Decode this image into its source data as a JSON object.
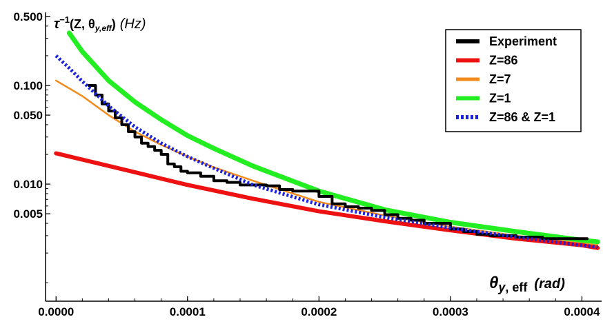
{
  "chart_data": {
    "type": "line",
    "title": "",
    "xlabel": "θy, eff (rad)",
    "ylabel": "τ⁻¹(Z, θy,eff) (Hz)",
    "xlabel_parts": {
      "main": "θ",
      "sub": "y",
      "sub2": ", eff",
      "unit": "(rad)"
    },
    "ylabel_parts": {
      "main": "τ",
      "sup": "−1",
      "open": "(Z, θ",
      "sub": "y,eff",
      "close": ")",
      "unit": "(Hz)"
    },
    "xscale": "linear",
    "yscale": "log",
    "xlim": [
      -8e-06,
      0.000415
    ],
    "ylim": [
      0.00065,
      0.55
    ],
    "x_ticks": [
      0.0,
      0.0001,
      0.0002,
      0.0003,
      0.0004
    ],
    "x_tick_labels": [
      "0.0000",
      "0.0001",
      "0.0002",
      "0.0003",
      "0.0004"
    ],
    "y_ticks": [
      0.5,
      0.1,
      0.05,
      0.01,
      0.005
    ],
    "y_tick_labels": [
      "0.500",
      "0.100",
      "0.050",
      "0.010",
      "0.005"
    ],
    "grid": false,
    "legend_position": "top-right",
    "series": [
      {
        "name": "Experiment",
        "color": "#000000",
        "style": "step",
        "x": [
          2.5e-05,
          3e-05,
          3.5e-05,
          4e-05,
          4.5e-05,
          5e-05,
          5.5e-05,
          6e-05,
          6.5e-05,
          7e-05,
          7.5e-05,
          8e-05,
          8.5e-05,
          9e-05,
          9.5e-05,
          0.0001,
          0.00011,
          0.00012,
          0.00013,
          0.00014,
          0.00015,
          0.00016,
          0.00017,
          0.00018,
          0.00019,
          0.0002,
          0.00021,
          0.00022,
          0.00023,
          0.00024,
          0.00025,
          0.00026,
          0.00027,
          0.00028,
          0.0003,
          0.00031,
          0.00032,
          0.00033,
          0.00035,
          0.00036,
          0.00037,
          0.00038,
          0.00039,
          0.0004
        ],
        "values": [
          0.1,
          0.08,
          0.065,
          0.055,
          0.047,
          0.04,
          0.034,
          0.03,
          0.026,
          0.024,
          0.022,
          0.02,
          0.016,
          0.015,
          0.0135,
          0.013,
          0.012,
          0.0108,
          0.0104,
          0.0098,
          0.0098,
          0.0096,
          0.0088,
          0.0085,
          0.0085,
          0.0075,
          0.0063,
          0.0059,
          0.0057,
          0.0054,
          0.0049,
          0.0045,
          0.0043,
          0.004,
          0.0035,
          0.0033,
          0.0031,
          0.003,
          0.0029,
          0.0029,
          0.0028,
          0.0028,
          0.0028,
          0.0028
        ]
      },
      {
        "name": "Z=86",
        "color": "#ee1111",
        "style": "solid",
        "x": [
          0.0,
          5e-05,
          0.0001,
          0.00015,
          0.0002,
          0.00025,
          0.0003,
          0.00035,
          0.0004,
          0.000412
        ],
        "values": [
          0.0205,
          0.0142,
          0.0098,
          0.0071,
          0.0053,
          0.0042,
          0.0034,
          0.0028,
          0.0024,
          0.00225
        ]
      },
      {
        "name": "Z=7",
        "color": "#f28a1c",
        "style": "solid",
        "x": [
          0.0,
          2e-05,
          4e-05,
          6e-05,
          8e-05,
          0.0001,
          0.00012,
          0.00015,
          0.0002,
          0.00025,
          0.0003,
          0.00035,
          0.0004,
          0.000412
        ],
        "values": [
          0.112,
          0.078,
          0.05,
          0.034,
          0.025,
          0.019,
          0.0148,
          0.0108,
          0.0066,
          0.0048,
          0.0037,
          0.003,
          0.0025,
          0.0024
        ]
      },
      {
        "name": "Z=1",
        "color": "#22ee22",
        "style": "solid",
        "x": [
          1e-05,
          2e-05,
          4e-05,
          6e-05,
          8e-05,
          0.0001,
          0.00012,
          0.00015,
          0.0002,
          0.00025,
          0.0003,
          0.00035,
          0.0004,
          0.000412
        ],
        "values": [
          0.34,
          0.22,
          0.112,
          0.068,
          0.045,
          0.031,
          0.023,
          0.0152,
          0.0085,
          0.0055,
          0.0041,
          0.0033,
          0.0027,
          0.0026
        ]
      },
      {
        "name": "Z=86 & Z=1",
        "color": "#1a22dd",
        "style": "dotted",
        "x": [
          0.0,
          1e-05,
          2e-05,
          4e-05,
          6e-05,
          8e-05,
          0.0001,
          0.00012,
          0.00015,
          0.0002,
          0.00025,
          0.0003,
          0.00035,
          0.0004,
          0.000412
        ],
        "values": [
          0.2,
          0.15,
          0.11,
          0.062,
          0.038,
          0.026,
          0.019,
          0.0145,
          0.0098,
          0.0062,
          0.0046,
          0.0036,
          0.0029,
          0.0024,
          0.0023
        ]
      }
    ]
  }
}
